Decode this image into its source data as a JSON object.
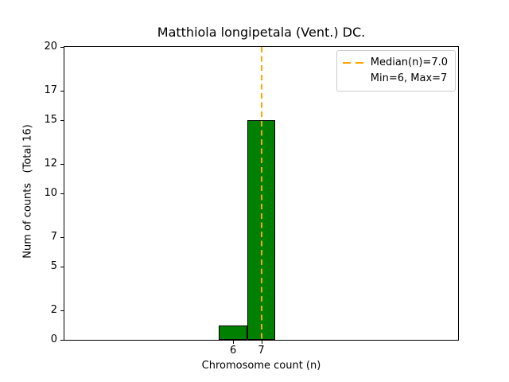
{
  "chart_data": {
    "type": "bar",
    "title": "Matthiola longipetala (Vent.) DC.",
    "xlabel": "Chromosome count (n)",
    "ylabel": "Num of counts   (Total 16)",
    "categories": [
      6,
      7
    ],
    "values": [
      1,
      15
    ],
    "total": 16,
    "bar_width": 1,
    "xlim": [
      0,
      14
    ],
    "ylim": [
      0,
      20
    ],
    "xticks": [
      6,
      7
    ],
    "yticks": [
      0,
      2,
      5,
      7,
      10,
      12,
      15,
      17,
      20
    ],
    "grid": false,
    "bar_color": "#008000",
    "bar_edge_color": "#000000",
    "median_line": {
      "x": 7,
      "value_label": "Median(n)=7.0",
      "color": "#FFA500",
      "style": "dashed"
    },
    "legend": {
      "position": "upper right",
      "border_color": "#cccccc",
      "entries": [
        {
          "label": "Median(n)=7.0",
          "handle": "orange-dashed-line"
        },
        {
          "label": "Min=6, Max=7",
          "handle": "none"
        }
      ]
    }
  }
}
